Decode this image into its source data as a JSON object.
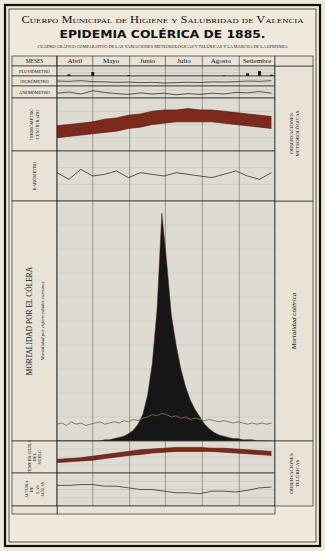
{
  "header": {
    "organization": "Cuerpo Municipal de Higiene y Salubridad de Valencia",
    "title": "EPIDEMIA COLÉRICA DE 1885.",
    "subtitle": "CUADRO GRÁFICO COMPARATIVO DE LAS VARIACIONES METEOROLÓGICAS Y TELÚRICAS Y LA MARCHA DE LA EPIDEMIA"
  },
  "months_label": "MESES",
  "months": [
    "Abril",
    "Mayo",
    "Junio",
    "Julio",
    "Agosto",
    "Setiembre"
  ],
  "groups": [
    "OBSERVACIONES METEOROLÓGICAS",
    "OBSERVACIONES TELÚRICAS"
  ],
  "chart_data": [
    {
      "type": "bar",
      "title": "PLUVIÓMETRO",
      "color": "#1a1a1a",
      "x": [
        0,
        10,
        20,
        30,
        40,
        50,
        60,
        70,
        80,
        90,
        100,
        110,
        120,
        130,
        140,
        150,
        160,
        170,
        180
      ],
      "values": [
        0,
        5,
        0,
        12,
        0,
        0,
        3,
        0,
        0,
        0,
        0,
        0,
        0,
        0,
        2,
        0,
        8,
        15,
        4
      ],
      "xlim": [
        0,
        183
      ],
      "xticks": [
        0,
        30,
        61,
        91,
        122,
        153,
        183
      ],
      "ylim": [
        0,
        30
      ],
      "yticks": [
        0,
        10,
        20,
        30
      ],
      "grid": true,
      "tick_labels": false
    },
    {
      "type": "line",
      "title": "HIGRÓMETRO",
      "color": "#1a1a1a",
      "x": [
        0,
        10,
        20,
        30,
        40,
        50,
        60,
        70,
        80,
        90,
        100,
        110,
        120,
        130,
        140,
        150,
        160,
        170,
        180
      ],
      "values": [
        70,
        68,
        72,
        66,
        65,
        62,
        64,
        60,
        62,
        58,
        60,
        63,
        61,
        65,
        64,
        66,
        70,
        68,
        72
      ],
      "xlim": [
        0,
        183
      ],
      "xticks": [
        0,
        30,
        61,
        91,
        122,
        153,
        183
      ],
      "ylim": [
        40,
        100
      ],
      "yticks": [
        40,
        60,
        80,
        100
      ],
      "grid": true,
      "tick_labels": false
    },
    {
      "type": "line",
      "title": "ANEMÓMETRO",
      "color": "#1a1a1a",
      "x": [
        0,
        10,
        20,
        30,
        40,
        50,
        60,
        70,
        80,
        90,
        100,
        110,
        120,
        130,
        140,
        150,
        160,
        170,
        180
      ],
      "values": [
        12,
        15,
        10,
        18,
        14,
        11,
        9,
        13,
        10,
        12,
        8,
        11,
        9,
        12,
        10,
        14,
        13,
        16,
        12
      ],
      "xlim": [
        0,
        183
      ],
      "xticks": [
        0,
        30,
        61,
        91,
        122,
        153,
        183
      ],
      "ylim": [
        0,
        30
      ],
      "yticks": [
        0,
        10,
        20,
        30
      ],
      "grid": true,
      "tick_labels": false
    },
    {
      "type": "band",
      "title": "TERMÓMETRO CENTÍGRADO",
      "color": "#7b2a1c",
      "x": [
        0,
        10,
        20,
        30,
        40,
        50,
        60,
        70,
        80,
        90,
        100,
        110,
        120,
        130,
        140,
        150,
        160,
        170,
        180
      ],
      "series": [
        {
          "values": [
            19,
            20,
            21,
            22,
            24,
            25,
            27,
            28,
            30,
            31,
            31,
            32,
            31,
            31,
            30,
            29,
            28,
            27,
            26
          ]
        },
        {
          "values": [
            10,
            11,
            12,
            13,
            14,
            15,
            17,
            18,
            20,
            21,
            22,
            22,
            22,
            22,
            21,
            20,
            19,
            18,
            17
          ]
        }
      ],
      "xlim": [
        0,
        183
      ],
      "xticks": [
        0,
        30,
        61,
        91,
        122,
        153,
        183
      ],
      "ylim": [
        0,
        40
      ],
      "yticks": [
        0,
        10,
        20,
        30,
        40
      ],
      "grid": true,
      "tick_labels": false
    },
    {
      "type": "line",
      "title": "BARÓMETRO",
      "color": "#1a1a1a",
      "x": [
        0,
        10,
        20,
        30,
        40,
        50,
        60,
        70,
        80,
        90,
        100,
        110,
        120,
        130,
        140,
        150,
        160,
        170,
        180
      ],
      "values": [
        762,
        758,
        764,
        760,
        761,
        763,
        759,
        762,
        761,
        760,
        762,
        761,
        760,
        759,
        761,
        763,
        760,
        758,
        762
      ],
      "xlim": [
        0,
        183
      ],
      "xticks": [
        0,
        30,
        61,
        91,
        122,
        153,
        183
      ],
      "ylim": [
        745,
        775
      ],
      "yticks": [
        745,
        755,
        765,
        775
      ],
      "grid": true,
      "tick_labels": false
    },
    {
      "type": "area",
      "title": "MORTALIDAD POR EL CÓLERA",
      "x": [
        0,
        4,
        8,
        12,
        16,
        20,
        24,
        28,
        32,
        36,
        40,
        44,
        48,
        52,
        56,
        60,
        64,
        68,
        72,
        76,
        80,
        84,
        88,
        92,
        96,
        100,
        104,
        108,
        112,
        116,
        120,
        124,
        128,
        132,
        136,
        140,
        144,
        148,
        152,
        156,
        160,
        164,
        168,
        172,
        176,
        180
      ],
      "series": [
        {
          "name": "Mortalidad colérica",
          "type": "area",
          "color": "#161616",
          "values": [
            0,
            0,
            0,
            0,
            0,
            0,
            0,
            0,
            0,
            0,
            1,
            1,
            2,
            3,
            4,
            6,
            9,
            14,
            22,
            38,
            65,
            110,
            190,
            150,
            105,
            80,
            60,
            45,
            34,
            26,
            20,
            14,
            10,
            7,
            5,
            4,
            3,
            2,
            2,
            1,
            1,
            1,
            0,
            0,
            0,
            0
          ]
        },
        {
          "name": "Mortalidad por enfermedades comunes",
          "type": "line",
          "color": "#8a6a4a",
          "values": [
            14,
            15,
            13,
            16,
            14,
            15,
            13,
            14,
            15,
            16,
            14,
            15,
            16,
            15,
            17,
            16,
            18,
            17,
            19,
            20,
            22,
            21,
            23,
            22,
            20,
            21,
            19,
            20,
            18,
            19,
            18,
            17,
            18,
            17,
            16,
            17,
            16,
            15,
            16,
            15,
            14,
            15,
            14,
            15,
            14,
            15
          ]
        }
      ],
      "xlim": [
        0,
        183
      ],
      "xticks": [
        0,
        30,
        61,
        91,
        122,
        153,
        183
      ],
      "ylim": [
        0,
        200
      ],
      "yticks": [
        0,
        20,
        40,
        60,
        80,
        100,
        120,
        140,
        160,
        180,
        200
      ],
      "grid": true,
      "tick_labels": false
    },
    {
      "type": "band",
      "title": "TEMPERATURA DEL SUELO",
      "color": "#7b2a1c",
      "x": [
        0,
        10,
        20,
        30,
        40,
        50,
        60,
        70,
        80,
        90,
        100,
        110,
        120,
        130,
        140,
        150,
        160,
        170,
        180
      ],
      "series": [
        {
          "values": [
            17,
            18,
            19,
            21,
            23,
            25,
            27,
            29,
            30,
            31,
            32,
            32,
            32,
            31,
            31,
            30,
            29,
            28,
            27
          ]
        },
        {
          "values": [
            13,
            14,
            15,
            16,
            18,
            20,
            22,
            23,
            25,
            26,
            27,
            27,
            27,
            27,
            26,
            25,
            24,
            23,
            22
          ]
        }
      ],
      "xlim": [
        0,
        183
      ],
      "xticks": [
        0,
        30,
        61,
        91,
        122,
        153,
        183
      ],
      "ylim": [
        0,
        40
      ],
      "yticks": [
        0,
        10,
        20,
        30,
        40
      ],
      "grid": true,
      "tick_labels": false
    },
    {
      "type": "line",
      "title": "ALTURA DE LAS AGUAS",
      "color": "#1a1a1a",
      "x": [
        0,
        10,
        20,
        30,
        40,
        50,
        60,
        70,
        80,
        90,
        100,
        110,
        120,
        130,
        140,
        150,
        160,
        170,
        180
      ],
      "values": [
        2.5,
        2.5,
        2.6,
        2.6,
        2.4,
        2.4,
        2.2,
        2.0,
        2.0,
        1.8,
        1.6,
        1.6,
        1.5,
        1.8,
        1.8,
        1.7,
        1.9,
        2.2,
        2.3
      ],
      "xlim": [
        0,
        183
      ],
      "xticks": [
        0,
        30,
        61,
        91,
        122,
        153,
        183
      ],
      "ylim": [
        0,
        4
      ],
      "yticks": [
        0,
        1,
        2,
        3,
        4
      ],
      "grid": true,
      "tick_labels": false
    }
  ]
}
